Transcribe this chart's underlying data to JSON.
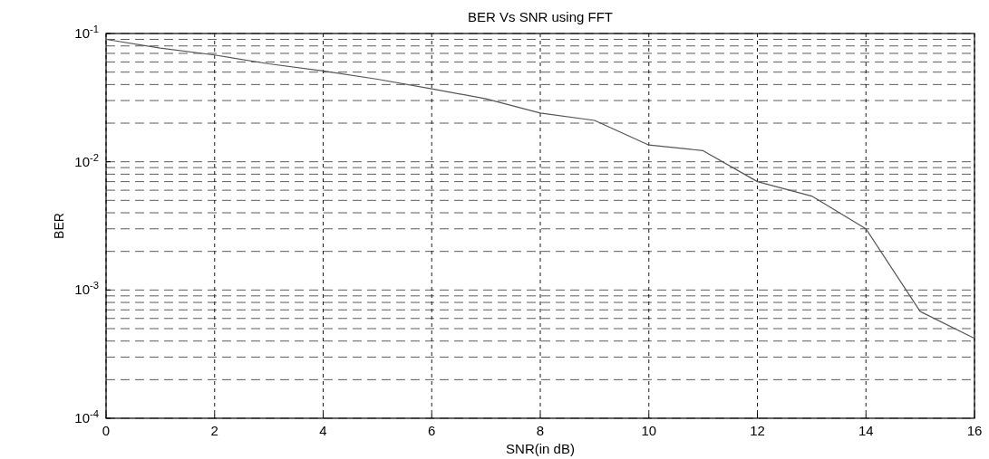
{
  "chart_data": {
    "type": "line",
    "title": "BER Vs SNR using FFT",
    "xlabel": "SNR(in dB)",
    "ylabel": "BER",
    "x": [
      0,
      1,
      2,
      3,
      4,
      5,
      6,
      7,
      8,
      9,
      10,
      11,
      12,
      13,
      14,
      15,
      16
    ],
    "series": [
      {
        "color": "#555555",
        "values": [
          0.09,
          0.077,
          0.068,
          0.058,
          0.051,
          0.044,
          0.037,
          0.031,
          0.024,
          0.021,
          0.0135,
          0.0122,
          0.007,
          0.0054,
          0.003,
          0.00068,
          0.00042
        ]
      }
    ],
    "xlim": [
      0,
      16
    ],
    "xticks": [
      0,
      2,
      4,
      6,
      8,
      10,
      12,
      14,
      16
    ],
    "ylim": [
      0.0001,
      0.1
    ],
    "yticks": [
      {
        "value": 0.0001,
        "label": "10$^{-4}$"
      },
      {
        "value": 0.001,
        "label": "10$^{-3}$"
      },
      {
        "value": 0.01,
        "label": "10$^{-2}$"
      },
      {
        "value": 0.1,
        "label": "10$^{-1}$"
      }
    ],
    "log": "y",
    "grid": true,
    "marker": "none",
    "line_style": "solid"
  }
}
